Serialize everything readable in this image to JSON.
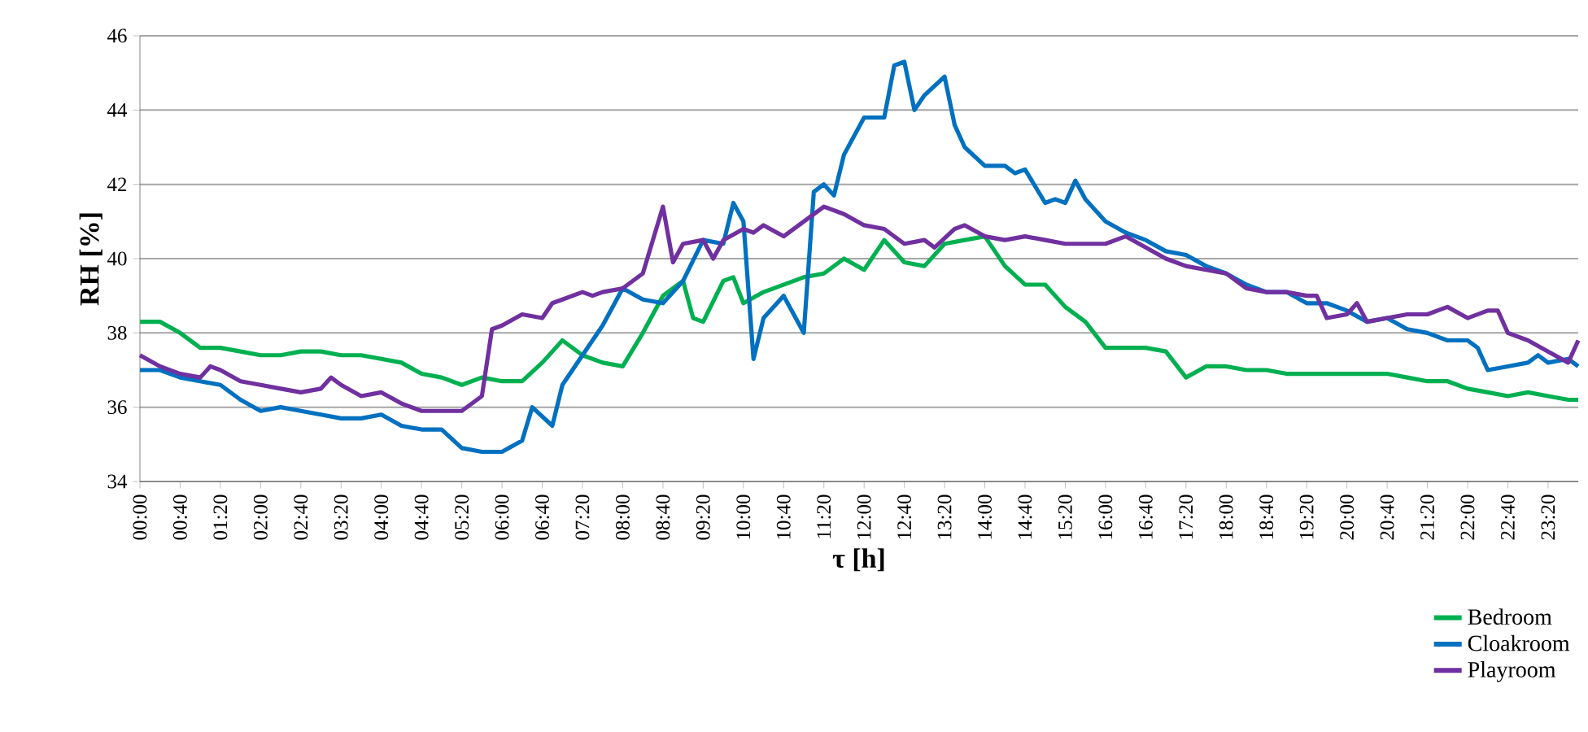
{
  "chart_data": {
    "type": "line",
    "xlabel": "τ [h]",
    "ylabel": "RH [%]",
    "xlim": [
      0,
      23.8333
    ],
    "ylim": [
      34,
      46
    ],
    "xticks": [
      {
        "value": 0,
        "label": "00:00"
      },
      {
        "value": 0.6667,
        "label": "00:40"
      },
      {
        "value": 1.3333,
        "label": "01:20"
      },
      {
        "value": 2,
        "label": "02:00"
      },
      {
        "value": 2.6667,
        "label": "02:40"
      },
      {
        "value": 3.3333,
        "label": "03:20"
      },
      {
        "value": 4,
        "label": "04:00"
      },
      {
        "value": 4.6667,
        "label": "04:40"
      },
      {
        "value": 5.3333,
        "label": "05:20"
      },
      {
        "value": 6,
        "label": "06:00"
      },
      {
        "value": 6.6667,
        "label": "06:40"
      },
      {
        "value": 7.3333,
        "label": "07:20"
      },
      {
        "value": 8,
        "label": "08:00"
      },
      {
        "value": 8.6667,
        "label": "08:40"
      },
      {
        "value": 9.3333,
        "label": "09:20"
      },
      {
        "value": 10,
        "label": "10:00"
      },
      {
        "value": 10.6667,
        "label": "10:40"
      },
      {
        "value": 11.3333,
        "label": "11:20"
      },
      {
        "value": 12,
        "label": "12:00"
      },
      {
        "value": 12.6667,
        "label": "12:40"
      },
      {
        "value": 13.3333,
        "label": "13:20"
      },
      {
        "value": 14,
        "label": "14:00"
      },
      {
        "value": 14.6667,
        "label": "14:40"
      },
      {
        "value": 15.3333,
        "label": "15:20"
      },
      {
        "value": 16,
        "label": "16:00"
      },
      {
        "value": 16.6667,
        "label": "16:40"
      },
      {
        "value": 17.3333,
        "label": "17:20"
      },
      {
        "value": 18,
        "label": "18:00"
      },
      {
        "value": 18.6667,
        "label": "18:40"
      },
      {
        "value": 19.3333,
        "label": "19:20"
      },
      {
        "value": 20,
        "label": "20:00"
      },
      {
        "value": 20.6667,
        "label": "20:40"
      },
      {
        "value": 21.3333,
        "label": "21:20"
      },
      {
        "value": 22,
        "label": "22:00"
      },
      {
        "value": 22.6667,
        "label": "22:40"
      },
      {
        "value": 23.3333,
        "label": "23:20"
      }
    ],
    "yticks": [
      34,
      36,
      38,
      40,
      42,
      44,
      46
    ],
    "grid": "y",
    "legend": "bottom right",
    "marker": "none",
    "line_style": "solid",
    "series": [
      {
        "name": "Bedroom",
        "color": "#00b050",
        "x": [
          0,
          0.3333,
          0.6667,
          1,
          1.3333,
          1.6667,
          2,
          2.3333,
          2.6667,
          3,
          3.3333,
          3.6667,
          4,
          4.3333,
          4.6667,
          5,
          5.3333,
          5.6667,
          6,
          6.3333,
          6.6667,
          7,
          7.3333,
          7.6667,
          8,
          8.3333,
          8.6667,
          9,
          9.1667,
          9.3333,
          9.6667,
          9.8333,
          10,
          10.3333,
          10.6667,
          11,
          11.3333,
          11.6667,
          12,
          12.3333,
          12.6667,
          13,
          13.3333,
          13.6667,
          14,
          14.3333,
          14.6667,
          15,
          15.3333,
          15.6667,
          16,
          16.3333,
          16.6667,
          17,
          17.3333,
          17.6667,
          18,
          18.3333,
          18.6667,
          19,
          19.3333,
          19.6667,
          20,
          20.3333,
          20.6667,
          21,
          21.3333,
          21.6667,
          22,
          22.3333,
          22.6667,
          23,
          23.3333,
          23.6667,
          23.8333
        ],
        "values": [
          38.3,
          38.3,
          38.0,
          37.6,
          37.6,
          37.5,
          37.4,
          37.4,
          37.5,
          37.5,
          37.4,
          37.4,
          37.3,
          37.2,
          36.9,
          36.8,
          36.6,
          36.8,
          36.7,
          36.7,
          37.2,
          37.8,
          37.4,
          37.2,
          37.1,
          38.0,
          39.0,
          39.4,
          38.4,
          38.3,
          39.4,
          39.5,
          38.8,
          39.1,
          39.3,
          39.5,
          39.6,
          40.0,
          39.7,
          40.5,
          39.9,
          39.8,
          40.4,
          40.5,
          40.6,
          39.8,
          39.3,
          39.3,
          38.7,
          38.3,
          37.6,
          37.6,
          37.6,
          37.5,
          36.8,
          37.1,
          37.1,
          37.0,
          37.0,
          36.9,
          36.9,
          36.9,
          36.9,
          36.9,
          36.9,
          36.8,
          36.7,
          36.7,
          36.5,
          36.4,
          36.3,
          36.4,
          36.3,
          36.2,
          36.2
        ]
      },
      {
        "name": "Cloakroom",
        "color": "#0070c0",
        "x": [
          0,
          0.3333,
          0.6667,
          1,
          1.3333,
          1.6667,
          2,
          2.3333,
          2.6667,
          3,
          3.3333,
          3.6667,
          4,
          4.3333,
          4.6667,
          5,
          5.3333,
          5.6667,
          6,
          6.3333,
          6.5,
          6.8333,
          7,
          7.3333,
          7.6667,
          8,
          8.3333,
          8.6667,
          9,
          9.3333,
          9.6667,
          9.8333,
          10,
          10.1667,
          10.3333,
          10.6667,
          11,
          11.1667,
          11.3333,
          11.5,
          11.6667,
          12,
          12.1667,
          12.3333,
          12.5,
          12.6667,
          12.8333,
          13,
          13.3333,
          13.5,
          13.6667,
          14,
          14.3333,
          14.5,
          14.6667,
          15,
          15.1667,
          15.3333,
          15.5,
          15.6667,
          16,
          16.3333,
          16.6667,
          17,
          17.3333,
          17.6667,
          18,
          18.3333,
          18.6667,
          19,
          19.3333,
          19.6667,
          20,
          20.3333,
          20.6667,
          21,
          21.3333,
          21.6667,
          22,
          22.1667,
          22.3333,
          22.6667,
          23,
          23.1667,
          23.3333,
          23.6667,
          23.8333
        ],
        "values": [
          37.0,
          37.0,
          36.8,
          36.7,
          36.6,
          36.2,
          35.9,
          36.0,
          35.9,
          35.8,
          35.7,
          35.7,
          35.8,
          35.5,
          35.4,
          35.4,
          34.9,
          34.8,
          34.8,
          35.1,
          36.0,
          35.5,
          36.6,
          37.4,
          38.2,
          39.2,
          38.9,
          38.8,
          39.4,
          40.5,
          40.4,
          41.5,
          41.0,
          37.3,
          38.4,
          39.0,
          38.0,
          41.8,
          42.0,
          41.7,
          42.8,
          43.8,
          43.8,
          43.8,
          45.2,
          45.3,
          44.0,
          44.4,
          44.9,
          43.6,
          43.0,
          42.5,
          42.5,
          42.3,
          42.4,
          41.5,
          41.6,
          41.5,
          42.1,
          41.6,
          41.0,
          40.7,
          40.5,
          40.2,
          40.1,
          39.8,
          39.6,
          39.3,
          39.1,
          39.1,
          38.8,
          38.8,
          38.6,
          38.3,
          38.4,
          38.1,
          38.0,
          37.8,
          37.8,
          37.6,
          37.0,
          37.1,
          37.2,
          37.4,
          37.2,
          37.3,
          37.1
        ]
      },
      {
        "name": "Playroom",
        "color": "#7030a0",
        "x": [
          0,
          0.3333,
          0.6667,
          1,
          1.1667,
          1.3333,
          1.6667,
          2,
          2.3333,
          2.6667,
          3,
          3.1667,
          3.3333,
          3.6667,
          4,
          4.3333,
          4.6667,
          5,
          5.3333,
          5.6667,
          5.8333,
          6,
          6.3333,
          6.6667,
          6.8333,
          7,
          7.3333,
          7.5,
          7.6667,
          8,
          8.3333,
          8.6667,
          8.8333,
          9,
          9.3333,
          9.5,
          9.6667,
          10,
          10.1667,
          10.3333,
          10.6667,
          11,
          11.3333,
          11.6667,
          12,
          12.3333,
          12.6667,
          13,
          13.1667,
          13.5,
          13.6667,
          14,
          14.3333,
          14.6667,
          15,
          15.3333,
          15.6667,
          16,
          16.3333,
          16.6667,
          17,
          17.3333,
          17.6667,
          18,
          18.3333,
          18.6667,
          19,
          19.3333,
          19.5,
          19.6667,
          20,
          20.1667,
          20.3333,
          20.6667,
          21,
          21.3333,
          21.6667,
          22,
          22.3333,
          22.5,
          22.6667,
          23,
          23.3333,
          23.6667,
          23.8333
        ],
        "values": [
          37.4,
          37.1,
          36.9,
          36.8,
          37.1,
          37.0,
          36.7,
          36.6,
          36.5,
          36.4,
          36.5,
          36.8,
          36.6,
          36.3,
          36.4,
          36.1,
          35.9,
          35.9,
          35.9,
          36.3,
          38.1,
          38.2,
          38.5,
          38.4,
          38.8,
          38.9,
          39.1,
          39.0,
          39.1,
          39.2,
          39.6,
          41.4,
          39.9,
          40.4,
          40.5,
          40.0,
          40.5,
          40.8,
          40.7,
          40.9,
          40.6,
          41.0,
          41.4,
          41.2,
          40.9,
          40.8,
          40.4,
          40.5,
          40.3,
          40.8,
          40.9,
          40.6,
          40.5,
          40.6,
          40.5,
          40.4,
          40.4,
          40.4,
          40.6,
          40.3,
          40.0,
          39.8,
          39.7,
          39.6,
          39.2,
          39.1,
          39.1,
          39.0,
          39.0,
          38.4,
          38.5,
          38.8,
          38.3,
          38.4,
          38.5,
          38.5,
          38.7,
          38.4,
          38.6,
          38.6,
          38.0,
          37.8,
          37.5,
          37.2,
          37.8
        ]
      }
    ]
  }
}
